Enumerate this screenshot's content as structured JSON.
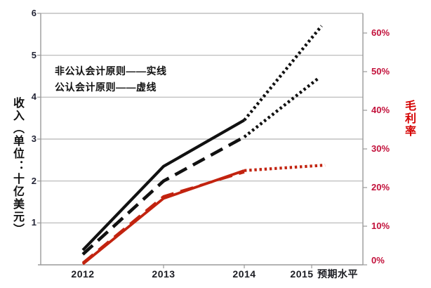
{
  "chart_data": {
    "type": "line",
    "title": "",
    "legend": {
      "line1": "非公认会计原则——实线",
      "line2": "公认会计原则——虚线"
    },
    "x_axis": {
      "labels": [
        "2012",
        "2013",
        "2014",
        "2015",
        "预期水平"
      ]
    },
    "left_axis": {
      "title": "收入（单位：十亿美元）",
      "ticks": [
        "6",
        "5",
        "4",
        "3",
        "2",
        "1"
      ],
      "tick_values": [
        6,
        5,
        4,
        3,
        2,
        1
      ],
      "range": [
        0,
        6
      ],
      "grid": true
    },
    "right_axis": {
      "title": "毛利率",
      "ticks": [
        "60%",
        "50%",
        "40%",
        "30%",
        "20%",
        "10%",
        "0%"
      ],
      "tick_values": [
        60,
        50,
        40,
        30,
        20,
        10,
        0
      ],
      "range_percent": [
        0,
        65
      ]
    },
    "series": [
      {
        "name": "non-gaap-revenue-actual",
        "label": "非公认会计原则收入（实线）",
        "axis": "left",
        "line_style": "solid",
        "color": "#111111",
        "width": 4.2,
        "x_index": [
          0,
          1,
          2
        ],
        "values": [
          0.35,
          2.35,
          3.45
        ]
      },
      {
        "name": "non-gaap-revenue-projection",
        "label": "非公认会计原则收入预期（点线）",
        "axis": "left",
        "line_style": "dotted",
        "color": "#111111",
        "width": 4.4,
        "x_index": [
          2,
          3.55
        ],
        "values": [
          3.45,
          5.7
        ]
      },
      {
        "name": "gaap-revenue-actual",
        "label": "公认会计原则收入（虚线）",
        "axis": "left",
        "line_style": "dashed",
        "color": "#111111",
        "width": 4.6,
        "x_index": [
          0,
          1,
          2
        ],
        "values": [
          0.25,
          2.0,
          3.05
        ]
      },
      {
        "name": "gaap-revenue-projection",
        "label": "公认会计原则收入预期（点线）",
        "axis": "left",
        "line_style": "dotted",
        "color": "#111111",
        "width": 4.4,
        "x_index": [
          2,
          3.49
        ],
        "values": [
          3.05,
          4.47
        ]
      },
      {
        "name": "non-gaap-margin-actual",
        "label": "非公认会计原则毛利率（实线）",
        "axis": "right",
        "line_style": "solid",
        "color": "#c2230f",
        "width": 3.8,
        "x_index": [
          0,
          1,
          2
        ],
        "values": [
          0.2,
          17.2,
          24.4
        ]
      },
      {
        "name": "gaap-margin-actual",
        "label": "公认会计原则毛利率（虚线）",
        "axis": "right",
        "line_style": "dashed",
        "color": "#c2230f",
        "width": 3.6,
        "x_index": [
          0,
          1,
          2
        ],
        "values": [
          0.5,
          17.7,
          24.0
        ]
      },
      {
        "name": "margin-projection",
        "label": "毛利率预期（点线）",
        "axis": "right",
        "line_style": "dotted",
        "color": "#c2230f",
        "width": 4.2,
        "x_index": [
          2,
          3.65
        ],
        "values": [
          24.4,
          25.8
        ]
      }
    ]
  },
  "colors": {
    "grid": "#b5b5b5",
    "axis": "#9a9a9a",
    "left_tick_text": "#242637",
    "right_tick_text": "#c2103a",
    "black_line": "#111111",
    "red_line": "#c2230f"
  }
}
